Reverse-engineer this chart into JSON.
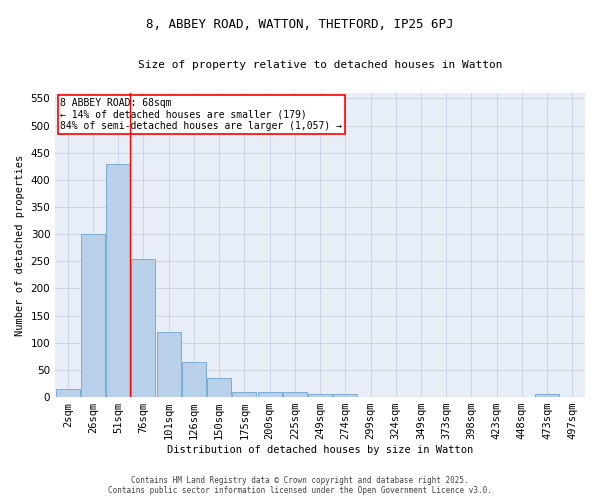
{
  "title": "8, ABBEY ROAD, WATTON, THETFORD, IP25 6PJ",
  "subtitle": "Size of property relative to detached houses in Watton",
  "xlabel": "Distribution of detached houses by size in Watton",
  "ylabel": "Number of detached properties",
  "bar_color": "#b8d0ea",
  "bar_edge_color": "#7aadd4",
  "background_color": "#e8eef8",
  "grid_color": "#c8d0e0",
  "categories": [
    "2sqm",
    "26sqm",
    "51sqm",
    "76sqm",
    "101sqm",
    "126sqm",
    "150sqm",
    "175sqm",
    "200sqm",
    "225sqm",
    "249sqm",
    "274sqm",
    "299sqm",
    "324sqm",
    "349sqm",
    "373sqm",
    "398sqm",
    "423sqm",
    "448sqm",
    "473sqm",
    "497sqm"
  ],
  "values": [
    15,
    300,
    430,
    255,
    120,
    65,
    35,
    10,
    10,
    10,
    5,
    5,
    0,
    0,
    0,
    0,
    0,
    0,
    0,
    5,
    0
  ],
  "ylim": [
    0,
    560
  ],
  "yticks": [
    0,
    50,
    100,
    150,
    200,
    250,
    300,
    350,
    400,
    450,
    500,
    550
  ],
  "red_line_x": 2.45,
  "annotation_text": "8 ABBEY ROAD: 68sqm\n← 14% of detached houses are smaller (179)\n84% of semi-detached houses are larger (1,057) →",
  "footer_line1": "Contains HM Land Registry data © Crown copyright and database right 2025.",
  "footer_line2": "Contains public sector information licensed under the Open Government Licence v3.0."
}
